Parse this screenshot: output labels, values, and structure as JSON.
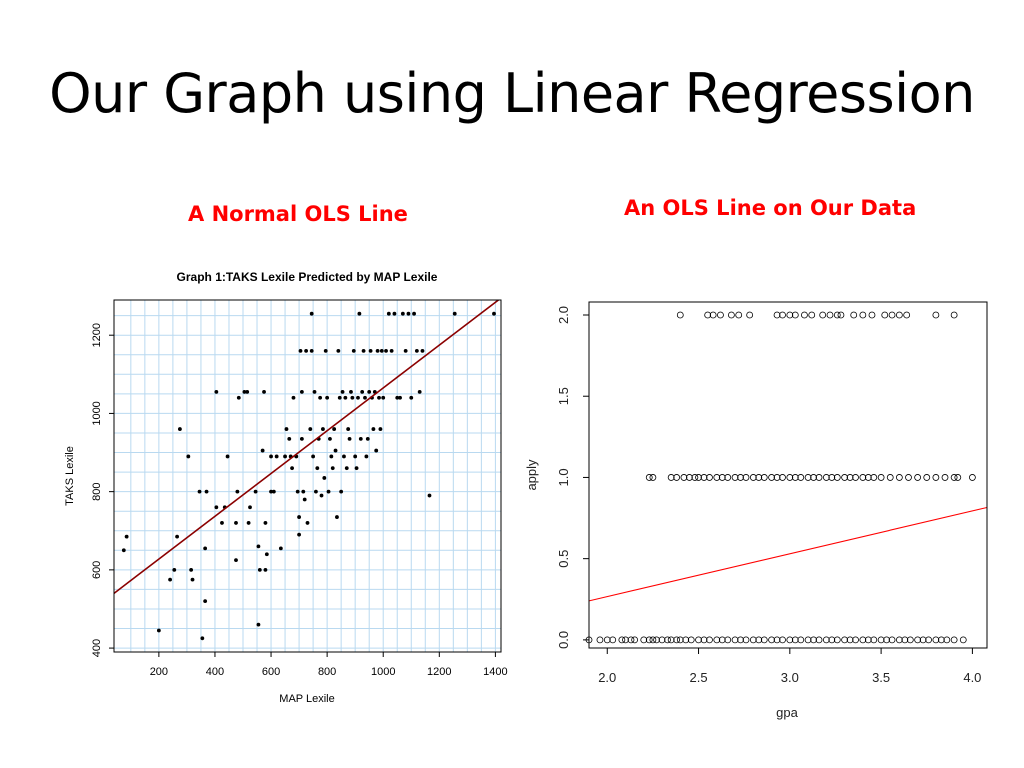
{
  "slide": {
    "title": "Our Graph using Linear Regression",
    "left_caption": "A Normal OLS Line",
    "right_caption": "An OLS Line on Our Data"
  },
  "colors": {
    "caption": "#ff0000",
    "left_line": "#8b0000",
    "right_line": "#ff0000",
    "left_grid": "#b9d9f0"
  },
  "chart_data": [
    {
      "type": "scatter",
      "title": "Graph 1:TAKS Lexile Predicted by MAP Lexile",
      "xlabel": "MAP Lexile",
      "ylabel": "TAKS Lexile",
      "xlim": [
        40,
        1420
      ],
      "ylim": [
        390,
        1290
      ],
      "xticks": [
        200,
        400,
        600,
        800,
        1000,
        1200,
        1400
      ],
      "yticks": [
        400,
        600,
        800,
        1000,
        1200
      ],
      "grid": true,
      "point_style": "filled",
      "fit_line": {
        "x": [
          40,
          1420
        ],
        "y": [
          540,
          1295
        ]
      },
      "points": [
        [
          75,
          650
        ],
        [
          85,
          685
        ],
        [
          200,
          445
        ],
        [
          240,
          575
        ],
        [
          255,
          600
        ],
        [
          265,
          685
        ],
        [
          275,
          960
        ],
        [
          305,
          890
        ],
        [
          315,
          600
        ],
        [
          320,
          575
        ],
        [
          345,
          800
        ],
        [
          355,
          425
        ],
        [
          365,
          655
        ],
        [
          365,
          520
        ],
        [
          370,
          800
        ],
        [
          405,
          1055
        ],
        [
          405,
          760
        ],
        [
          425,
          720
        ],
        [
          435,
          760
        ],
        [
          445,
          890
        ],
        [
          475,
          625
        ],
        [
          475,
          720
        ],
        [
          480,
          800
        ],
        [
          485,
          1040
        ],
        [
          505,
          1055
        ],
        [
          515,
          1055
        ],
        [
          520,
          720
        ],
        [
          525,
          760
        ],
        [
          545,
          800
        ],
        [
          555,
          660
        ],
        [
          555,
          460
        ],
        [
          560,
          600
        ],
        [
          570,
          905
        ],
        [
          575,
          1055
        ],
        [
          580,
          600
        ],
        [
          580,
          720
        ],
        [
          585,
          640
        ],
        [
          600,
          800
        ],
        [
          600,
          890
        ],
        [
          610,
          800
        ],
        [
          620,
          890
        ],
        [
          635,
          655
        ],
        [
          650,
          890
        ],
        [
          655,
          960
        ],
        [
          665,
          935
        ],
        [
          670,
          890
        ],
        [
          675,
          860
        ],
        [
          680,
          1040
        ],
        [
          690,
          890
        ],
        [
          695,
          800
        ],
        [
          700,
          735
        ],
        [
          700,
          690
        ],
        [
          705,
          1160
        ],
        [
          710,
          935
        ],
        [
          710,
          1055
        ],
        [
          715,
          800
        ],
        [
          720,
          780
        ],
        [
          725,
          1160
        ],
        [
          730,
          720
        ],
        [
          740,
          960
        ],
        [
          745,
          1255
        ],
        [
          745,
          1160
        ],
        [
          750,
          890
        ],
        [
          755,
          1055
        ],
        [
          760,
          800
        ],
        [
          765,
          860
        ],
        [
          770,
          935
        ],
        [
          775,
          1040
        ],
        [
          780,
          790
        ],
        [
          785,
          960
        ],
        [
          790,
          835
        ],
        [
          795,
          1160
        ],
        [
          800,
          1040
        ],
        [
          805,
          800
        ],
        [
          810,
          935
        ],
        [
          815,
          890
        ],
        [
          820,
          860
        ],
        [
          825,
          960
        ],
        [
          830,
          905
        ],
        [
          835,
          735
        ],
        [
          840,
          1160
        ],
        [
          845,
          1040
        ],
        [
          850,
          800
        ],
        [
          855,
          1055
        ],
        [
          860,
          890
        ],
        [
          865,
          1040
        ],
        [
          870,
          860
        ],
        [
          875,
          960
        ],
        [
          880,
          935
        ],
        [
          885,
          1055
        ],
        [
          890,
          1040
        ],
        [
          895,
          1160
        ],
        [
          900,
          890
        ],
        [
          905,
          860
        ],
        [
          910,
          1040
        ],
        [
          915,
          1255
        ],
        [
          920,
          935
        ],
        [
          925,
          1055
        ],
        [
          930,
          1160
        ],
        [
          935,
          1040
        ],
        [
          940,
          890
        ],
        [
          945,
          935
        ],
        [
          950,
          1055
        ],
        [
          955,
          1160
        ],
        [
          960,
          1040
        ],
        [
          965,
          960
        ],
        [
          970,
          1055
        ],
        [
          975,
          905
        ],
        [
          980,
          1160
        ],
        [
          985,
          1040
        ],
        [
          990,
          960
        ],
        [
          995,
          1160
        ],
        [
          1000,
          1040
        ],
        [
          1010,
          1160
        ],
        [
          1020,
          1255
        ],
        [
          1030,
          1160
        ],
        [
          1040,
          1255
        ],
        [
          1050,
          1040
        ],
        [
          1060,
          1040
        ],
        [
          1070,
          1255
        ],
        [
          1080,
          1160
        ],
        [
          1090,
          1255
        ],
        [
          1100,
          1040
        ],
        [
          1110,
          1255
        ],
        [
          1120,
          1160
        ],
        [
          1130,
          1055
        ],
        [
          1140,
          1160
        ],
        [
          1165,
          790
        ],
        [
          1255,
          1255
        ],
        [
          1395,
          1255
        ]
      ]
    },
    {
      "type": "scatter",
      "title": "",
      "xlabel": "gpa",
      "ylabel": "apply",
      "xlim": [
        1.9,
        4.08
      ],
      "ylim": [
        -0.05,
        2.08
      ],
      "xticks": [
        "2.0",
        "2.5",
        "3.0",
        "3.5",
        "4.0"
      ],
      "yticks": [
        "0.0",
        "0.5",
        "1.0",
        "1.5",
        "2.0"
      ],
      "grid": false,
      "point_style": "open",
      "fit_line": {
        "x": [
          1.9,
          4.08
        ],
        "y": [
          0.24,
          0.815
        ]
      },
      "points": [
        [
          1.9,
          0
        ],
        [
          1.96,
          0
        ],
        [
          2.0,
          0
        ],
        [
          2.03,
          0
        ],
        [
          2.08,
          0
        ],
        [
          2.1,
          0
        ],
        [
          2.13,
          0
        ],
        [
          2.15,
          0
        ],
        [
          2.2,
          0
        ],
        [
          2.23,
          0
        ],
        [
          2.25,
          0
        ],
        [
          2.27,
          0
        ],
        [
          2.3,
          0
        ],
        [
          2.33,
          0
        ],
        [
          2.35,
          0
        ],
        [
          2.38,
          0
        ],
        [
          2.4,
          0
        ],
        [
          2.43,
          0
        ],
        [
          2.46,
          0
        ],
        [
          2.5,
          0
        ],
        [
          2.53,
          0
        ],
        [
          2.56,
          0
        ],
        [
          2.6,
          0
        ],
        [
          2.63,
          0
        ],
        [
          2.66,
          0
        ],
        [
          2.7,
          0
        ],
        [
          2.73,
          0
        ],
        [
          2.76,
          0
        ],
        [
          2.8,
          0
        ],
        [
          2.83,
          0
        ],
        [
          2.86,
          0
        ],
        [
          2.9,
          0
        ],
        [
          2.93,
          0
        ],
        [
          2.96,
          0
        ],
        [
          3.0,
          0
        ],
        [
          3.03,
          0
        ],
        [
          3.06,
          0
        ],
        [
          3.1,
          0
        ],
        [
          3.13,
          0
        ],
        [
          3.16,
          0
        ],
        [
          3.2,
          0
        ],
        [
          3.23,
          0
        ],
        [
          3.26,
          0
        ],
        [
          3.3,
          0
        ],
        [
          3.33,
          0
        ],
        [
          3.36,
          0
        ],
        [
          3.4,
          0
        ],
        [
          3.43,
          0
        ],
        [
          3.46,
          0
        ],
        [
          3.5,
          0
        ],
        [
          3.53,
          0
        ],
        [
          3.56,
          0
        ],
        [
          3.6,
          0
        ],
        [
          3.63,
          0
        ],
        [
          3.66,
          0
        ],
        [
          3.7,
          0
        ],
        [
          3.73,
          0
        ],
        [
          3.76,
          0
        ],
        [
          3.8,
          0
        ],
        [
          3.83,
          0
        ],
        [
          3.86,
          0
        ],
        [
          3.9,
          0
        ],
        [
          3.95,
          0
        ],
        [
          2.23,
          1
        ],
        [
          2.25,
          1
        ],
        [
          2.35,
          1
        ],
        [
          2.38,
          1
        ],
        [
          2.42,
          1
        ],
        [
          2.45,
          1
        ],
        [
          2.48,
          1
        ],
        [
          2.5,
          1
        ],
        [
          2.53,
          1
        ],
        [
          2.56,
          1
        ],
        [
          2.6,
          1
        ],
        [
          2.63,
          1
        ],
        [
          2.66,
          1
        ],
        [
          2.7,
          1
        ],
        [
          2.73,
          1
        ],
        [
          2.76,
          1
        ],
        [
          2.8,
          1
        ],
        [
          2.83,
          1
        ],
        [
          2.86,
          1
        ],
        [
          2.9,
          1
        ],
        [
          2.93,
          1
        ],
        [
          2.96,
          1
        ],
        [
          3.0,
          1
        ],
        [
          3.03,
          1
        ],
        [
          3.06,
          1
        ],
        [
          3.1,
          1
        ],
        [
          3.13,
          1
        ],
        [
          3.16,
          1
        ],
        [
          3.2,
          1
        ],
        [
          3.23,
          1
        ],
        [
          3.26,
          1
        ],
        [
          3.3,
          1
        ],
        [
          3.33,
          1
        ],
        [
          3.36,
          1
        ],
        [
          3.4,
          1
        ],
        [
          3.43,
          1
        ],
        [
          3.46,
          1
        ],
        [
          3.5,
          1
        ],
        [
          3.55,
          1
        ],
        [
          3.6,
          1
        ],
        [
          3.65,
          1
        ],
        [
          3.7,
          1
        ],
        [
          3.75,
          1
        ],
        [
          3.8,
          1
        ],
        [
          3.85,
          1
        ],
        [
          3.9,
          1
        ],
        [
          3.92,
          1
        ],
        [
          4.0,
          1
        ],
        [
          2.4,
          2
        ],
        [
          2.55,
          2
        ],
        [
          2.58,
          2
        ],
        [
          2.62,
          2
        ],
        [
          2.68,
          2
        ],
        [
          2.72,
          2
        ],
        [
          2.78,
          2
        ],
        [
          2.93,
          2
        ],
        [
          2.96,
          2
        ],
        [
          3.0,
          2
        ],
        [
          3.03,
          2
        ],
        [
          3.08,
          2
        ],
        [
          3.12,
          2
        ],
        [
          3.18,
          2
        ],
        [
          3.22,
          2
        ],
        [
          3.26,
          2
        ],
        [
          3.28,
          2
        ],
        [
          3.35,
          2
        ],
        [
          3.4,
          2
        ],
        [
          3.45,
          2
        ],
        [
          3.52,
          2
        ],
        [
          3.56,
          2
        ],
        [
          3.6,
          2
        ],
        [
          3.64,
          2
        ],
        [
          3.8,
          2
        ],
        [
          3.9,
          2
        ]
      ]
    }
  ]
}
